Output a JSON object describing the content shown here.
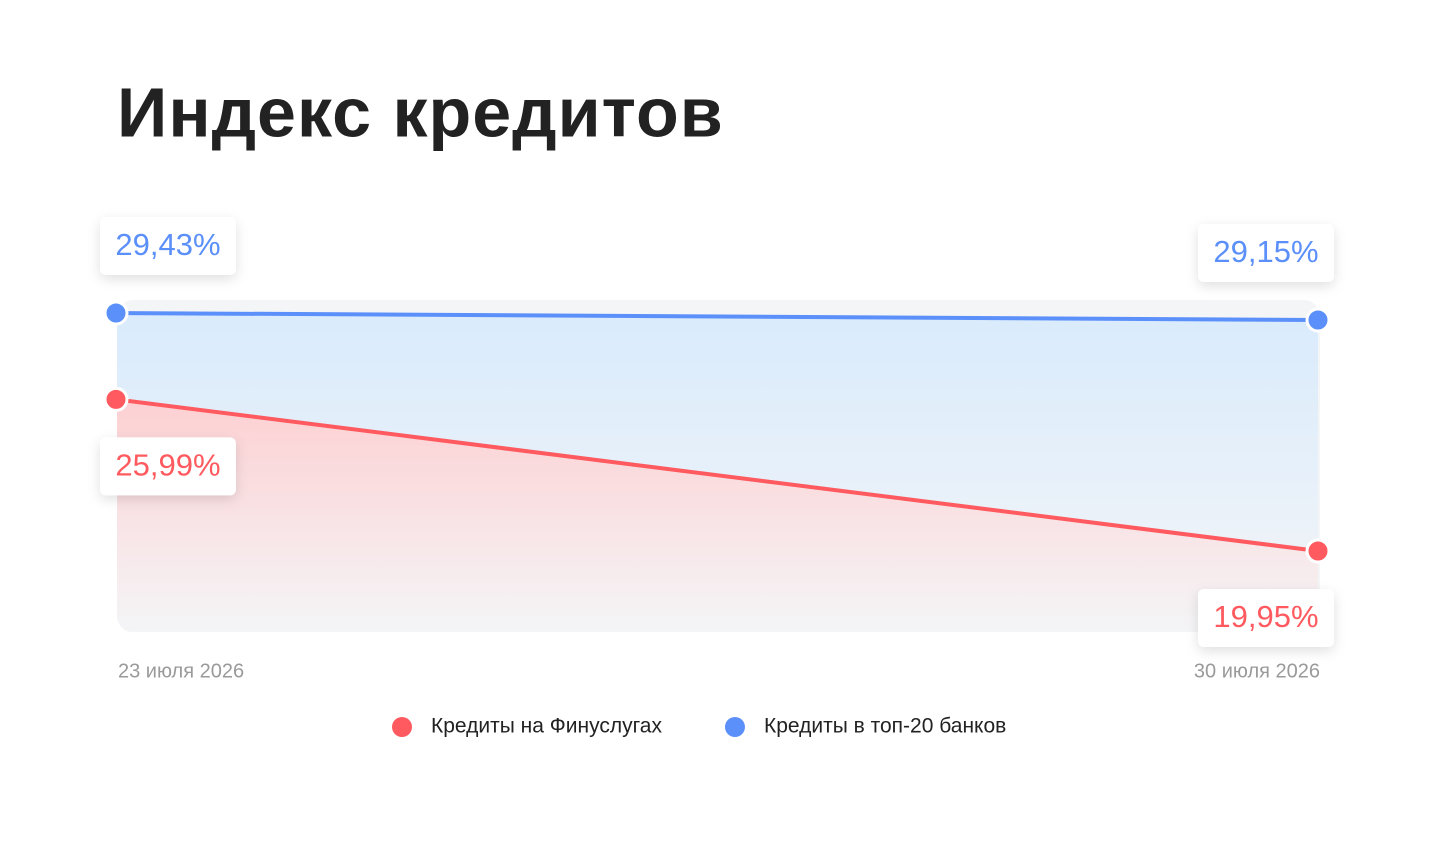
{
  "chart_data": {
    "type": "line",
    "title": "Индекс кредитов",
    "x": [
      "23 июля 2026",
      "30 июля 2026"
    ],
    "series": [
      {
        "name": "Кредиты на Финуслугах",
        "color": "#ff5a5f",
        "values": [
          25.99,
          19.95
        ],
        "value_labels": [
          "25,99%",
          "19,95%"
        ]
      },
      {
        "name": "Кредиты в топ-20 банков",
        "color": "#5b8ff9",
        "values": [
          29.43,
          29.15
        ],
        "value_labels": [
          "29,43%",
          "29,15%"
        ]
      }
    ]
  }
}
